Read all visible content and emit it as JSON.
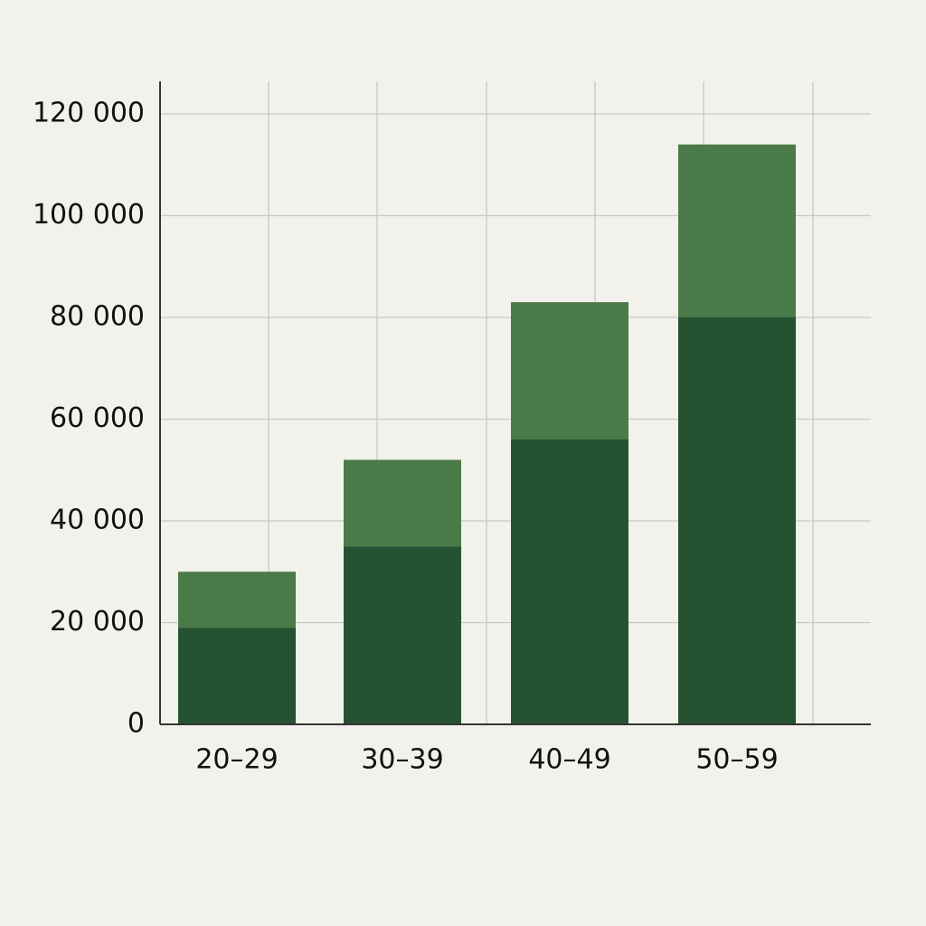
{
  "chart_data": {
    "type": "stacked_bar",
    "categories": [
      "20–29",
      "30–39",
      "40–49",
      "50–59"
    ],
    "series": [
      {
        "color": "#255230",
        "values": [
          19000,
          35000,
          56000,
          80000
        ]
      },
      {
        "color": "#4a7a48",
        "values": [
          11000,
          17000,
          27000,
          34000
        ]
      }
    ],
    "ylim": [
      0,
      120000
    ],
    "yticks": [
      0,
      {
        "value": 20000,
        "label": "20 000"
      },
      {
        "value": 40000,
        "label": "40 000"
      },
      {
        "value": 60000,
        "label": "60 000"
      },
      {
        "value": 80000,
        "label": "80 000"
      },
      {
        "value": 100000,
        "label": "100 000"
      },
      {
        "value": 120000,
        "label": "120 000"
      }
    ],
    "grid": true
  }
}
